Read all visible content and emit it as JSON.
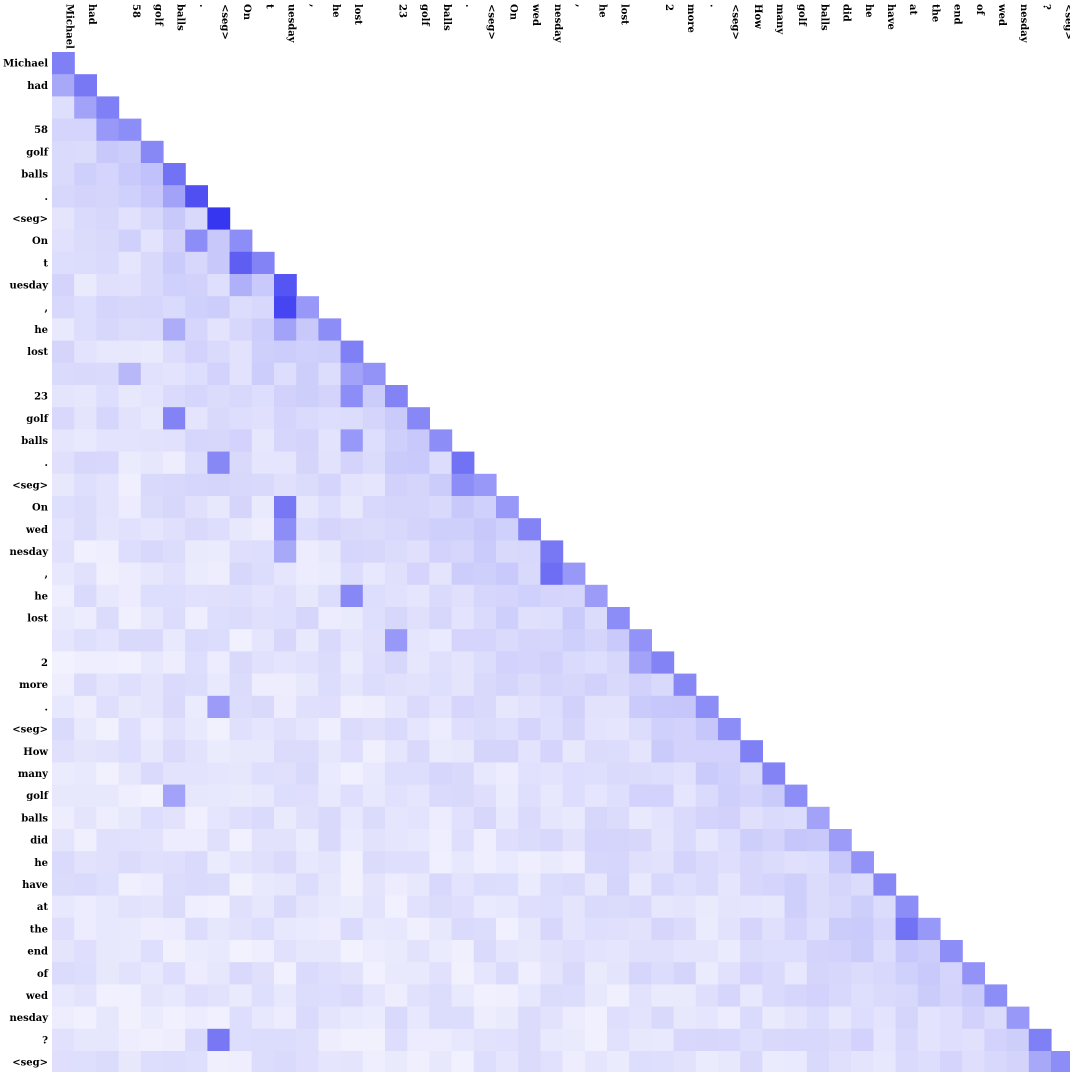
{
  "chart_data": {
    "type": "heatmap",
    "title": "",
    "xlabel": "",
    "ylabel": "",
    "grid": false,
    "legend": "none",
    "colormap": {
      "low": "#ffffff",
      "high": "#3030f0"
    },
    "value_range": [
      0,
      1
    ],
    "tokens": [
      "Michael",
      "had",
      "",
      "58",
      "golf",
      "balls",
      ".",
      "<seg>",
      "On",
      "t",
      "uesday",
      ",",
      "he",
      "lost",
      "",
      "23",
      "golf",
      "balls",
      ".",
      "<seg>",
      "On",
      "wed",
      "nesday",
      ",",
      "he",
      "lost",
      "",
      "2",
      "more",
      ".",
      "<seg>",
      "How",
      "many",
      "golf",
      "balls",
      "did",
      "he",
      "have",
      "at",
      "the",
      "end",
      "of",
      "wed",
      "nesday",
      "?",
      "<seg>"
    ],
    "x_tick_labels": [
      "Michael",
      "had",
      "",
      "58",
      "golf",
      "balls",
      ".",
      "<seg>",
      "On",
      "t",
      "uesday",
      ",",
      "he",
      "lost",
      "",
      "23",
      "golf",
      "balls",
      ".",
      "<seg>",
      "On",
      "wed",
      "nesday",
      ",",
      "he",
      "lost",
      "",
      "2",
      "more",
      ".",
      "<seg>",
      "How",
      "many",
      "golf",
      "balls",
      "did",
      "he",
      "have",
      "at",
      "the",
      "end",
      "of",
      "wed",
      "nesday",
      "?",
      "<seg>"
    ],
    "y_tick_labels": [
      "Michael",
      "had",
      "",
      "58",
      "golf",
      "balls",
      ".",
      "<seg>",
      "On",
      "t",
      "uesday",
      ",",
      "he",
      "lost",
      "",
      "23",
      "golf",
      "balls",
      ".",
      "<seg>",
      "On",
      "wed",
      "nesday",
      ",",
      "he",
      "lost",
      "",
      "2",
      "more",
      ".",
      "<seg>",
      "How",
      "many",
      "golf",
      "balls",
      "did",
      "he",
      "have",
      "at",
      "the",
      "end",
      "of",
      "wed",
      "nesday",
      "?",
      "<seg>"
    ],
    "mask": "lower-triangular (causal)",
    "highlights": [
      {
        "row": 0,
        "col": 0,
        "value": 0.62
      },
      {
        "row": 1,
        "col": 0,
        "value": 0.42
      },
      {
        "row": 1,
        "col": 1,
        "value": 0.65
      },
      {
        "row": 2,
        "col": 1,
        "value": 0.45
      },
      {
        "row": 2,
        "col": 2,
        "value": 0.62
      },
      {
        "row": 3,
        "col": 2,
        "value": 0.5
      },
      {
        "row": 3,
        "col": 3,
        "value": 0.55
      },
      {
        "row": 4,
        "col": 4,
        "value": 0.58
      },
      {
        "row": 5,
        "col": 5,
        "value": 0.68
      },
      {
        "row": 5,
        "col": 4,
        "value": 0.3
      },
      {
        "row": 6,
        "col": 6,
        "value": 0.85
      },
      {
        "row": 6,
        "col": 5,
        "value": 0.45
      },
      {
        "row": 7,
        "col": 7,
        "value": 0.97
      },
      {
        "row": 8,
        "col": 6,
        "value": 0.55
      },
      {
        "row": 8,
        "col": 8,
        "value": 0.55
      },
      {
        "row": 9,
        "col": 8,
        "value": 0.78
      },
      {
        "row": 9,
        "col": 9,
        "value": 0.6
      },
      {
        "row": 10,
        "col": 10,
        "value": 0.82
      },
      {
        "row": 10,
        "col": 8,
        "value": 0.38
      },
      {
        "row": 11,
        "col": 10,
        "value": 0.9
      },
      {
        "row": 11,
        "col": 11,
        "value": 0.5
      },
      {
        "row": 12,
        "col": 12,
        "value": 0.55
      },
      {
        "row": 12,
        "col": 5,
        "value": 0.4
      },
      {
        "row": 12,
        "col": 10,
        "value": 0.45
      },
      {
        "row": 13,
        "col": 13,
        "value": 0.62
      },
      {
        "row": 14,
        "col": 14,
        "value": 0.52
      },
      {
        "row": 14,
        "col": 13,
        "value": 0.45
      },
      {
        "row": 14,
        "col": 3,
        "value": 0.35
      },
      {
        "row": 15,
        "col": 15,
        "value": 0.6
      },
      {
        "row": 15,
        "col": 13,
        "value": 0.55
      },
      {
        "row": 16,
        "col": 16,
        "value": 0.58
      },
      {
        "row": 16,
        "col": 5,
        "value": 0.6
      },
      {
        "row": 17,
        "col": 17,
        "value": 0.55
      },
      {
        "row": 17,
        "col": 13,
        "value": 0.5
      },
      {
        "row": 18,
        "col": 18,
        "value": 0.68
      },
      {
        "row": 18,
        "col": 7,
        "value": 0.58
      },
      {
        "row": 19,
        "col": 18,
        "value": 0.55
      },
      {
        "row": 19,
        "col": 19,
        "value": 0.5
      },
      {
        "row": 20,
        "col": 20,
        "value": 0.5
      },
      {
        "row": 20,
        "col": 10,
        "value": 0.65
      },
      {
        "row": 21,
        "col": 21,
        "value": 0.6
      },
      {
        "row": 21,
        "col": 10,
        "value": 0.55
      },
      {
        "row": 22,
        "col": 22,
        "value": 0.65
      },
      {
        "row": 22,
        "col": 10,
        "value": 0.42
      },
      {
        "row": 23,
        "col": 22,
        "value": 0.7
      },
      {
        "row": 23,
        "col": 23,
        "value": 0.5
      },
      {
        "row": 24,
        "col": 24,
        "value": 0.48
      },
      {
        "row": 24,
        "col": 13,
        "value": 0.58
      },
      {
        "row": 25,
        "col": 25,
        "value": 0.55
      },
      {
        "row": 26,
        "col": 26,
        "value": 0.52
      },
      {
        "row": 26,
        "col": 15,
        "value": 0.5
      },
      {
        "row": 27,
        "col": 27,
        "value": 0.6
      },
      {
        "row": 27,
        "col": 26,
        "value": 0.45
      },
      {
        "row": 28,
        "col": 28,
        "value": 0.58
      },
      {
        "row": 29,
        "col": 29,
        "value": 0.55
      },
      {
        "row": 29,
        "col": 7,
        "value": 0.48
      },
      {
        "row": 30,
        "col": 30,
        "value": 0.55
      },
      {
        "row": 31,
        "col": 31,
        "value": 0.62
      },
      {
        "row": 32,
        "col": 32,
        "value": 0.6
      },
      {
        "row": 33,
        "col": 33,
        "value": 0.55
      },
      {
        "row": 33,
        "col": 5,
        "value": 0.45
      },
      {
        "row": 34,
        "col": 34,
        "value": 0.45
      },
      {
        "row": 35,
        "col": 35,
        "value": 0.48
      },
      {
        "row": 36,
        "col": 36,
        "value": 0.52
      },
      {
        "row": 37,
        "col": 37,
        "value": 0.58
      },
      {
        "row": 38,
        "col": 38,
        "value": 0.55
      },
      {
        "row": 39,
        "col": 39,
        "value": 0.5
      },
      {
        "row": 39,
        "col": 38,
        "value": 0.68
      },
      {
        "row": 40,
        "col": 40,
        "value": 0.55
      },
      {
        "row": 41,
        "col": 41,
        "value": 0.52
      },
      {
        "row": 42,
        "col": 42,
        "value": 0.55
      },
      {
        "row": 43,
        "col": 43,
        "value": 0.5
      },
      {
        "row": 44,
        "col": 44,
        "value": 0.62
      },
      {
        "row": 44,
        "col": 7,
        "value": 0.65
      },
      {
        "row": 45,
        "col": 45,
        "value": 0.55
      },
      {
        "row": 45,
        "col": 44,
        "value": 0.42
      }
    ]
  }
}
